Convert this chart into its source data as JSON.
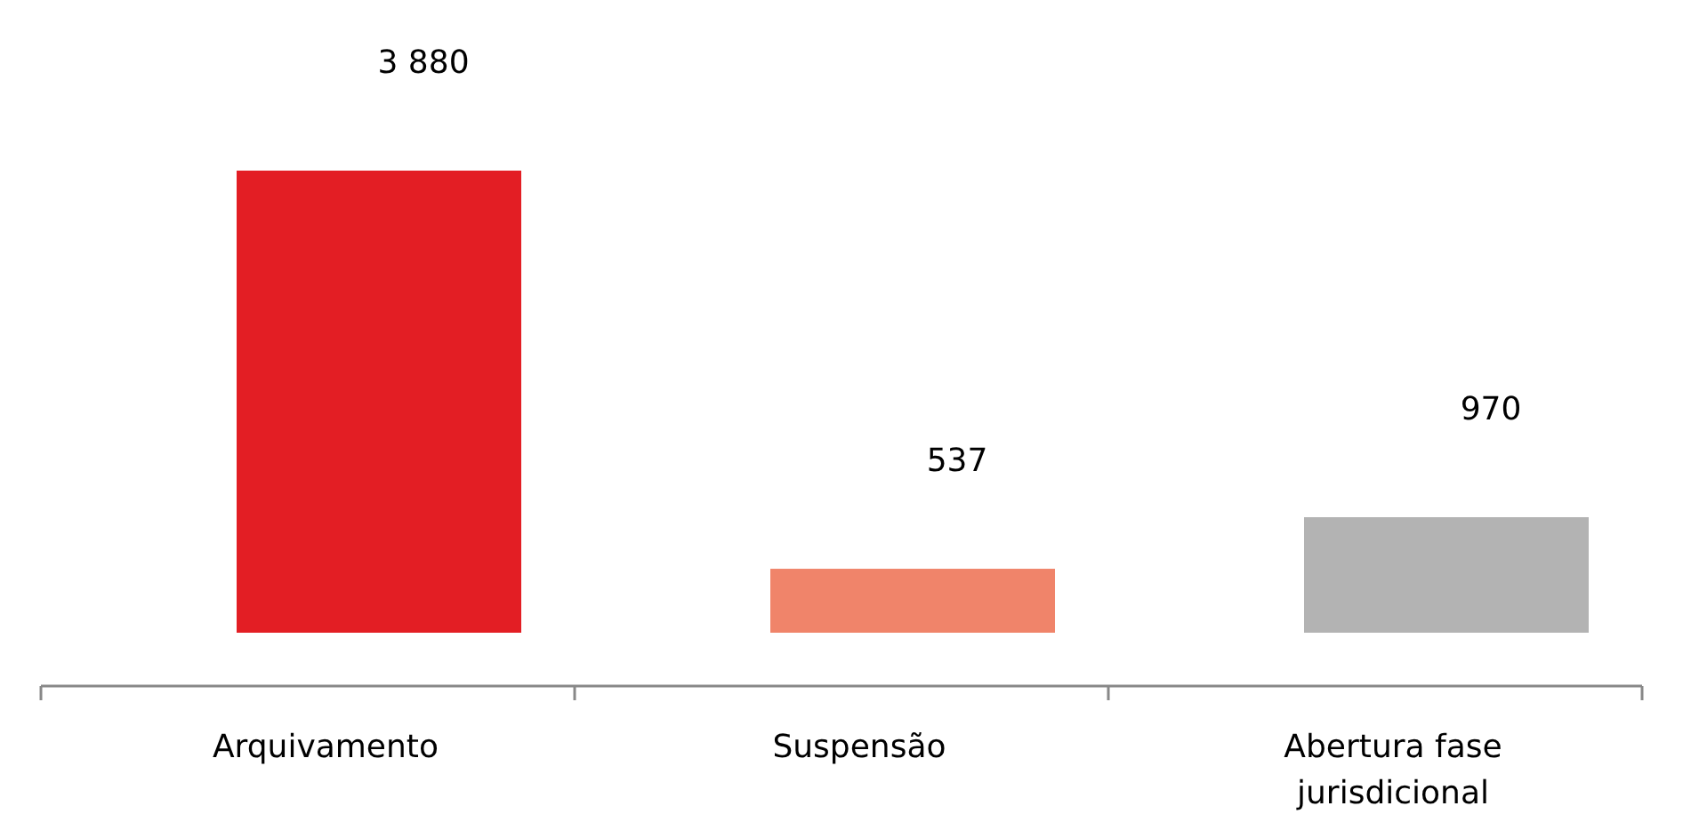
{
  "chart_data": {
    "type": "bar",
    "categories": [
      "Arquivamento",
      "Suspensão",
      "Abertura fase jurisdicional"
    ],
    "values": [
      3880,
      537,
      970
    ],
    "colors": [
      "#e31e24",
      "#f0846a",
      "#b3b3b3"
    ],
    "value_labels": [
      "3 880",
      "537",
      "970"
    ]
  }
}
